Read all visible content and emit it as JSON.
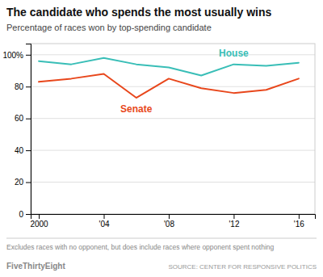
{
  "chart_data": {
    "type": "line",
    "title": "The candidate who spends the most usually wins",
    "subtitle": "Percentage of races won by top-spending candidate",
    "footnote": "Excludes races with no opponent, but does include races where opponent spent nothing",
    "branding": "FiveThirtyEight",
    "source": "SOURCE: CENTER FOR RESPONSIVE POLITICS",
    "x": [
      2000,
      2002,
      2004,
      2006,
      2008,
      2010,
      2012,
      2014,
      2016
    ],
    "series": [
      {
        "name": "House",
        "color": "#39BEB7",
        "values": [
          96,
          94,
          98,
          94,
          92,
          87,
          94,
          93,
          95
        ]
      },
      {
        "name": "Senate",
        "color": "#E8471C",
        "values": [
          83,
          85,
          88,
          73,
          85,
          79,
          76,
          78,
          85
        ]
      }
    ],
    "xlim": [
      1999.5,
      2017
    ],
    "ylim": [
      0,
      107
    ],
    "xticks": [
      2000,
      {
        "value": 2004,
        "label": "'04"
      },
      {
        "value": 2008,
        "label": "'08"
      },
      {
        "value": 2012,
        "label": "'12"
      },
      {
        "value": 2016,
        "label": "'16"
      }
    ],
    "yticks": [
      0,
      20,
      40,
      60,
      80,
      {
        "value": 100,
        "label": "100%"
      }
    ],
    "grid": true
  }
}
